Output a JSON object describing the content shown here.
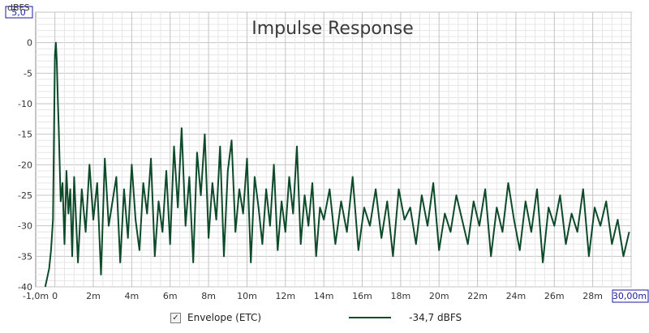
{
  "chart_data": {
    "type": "line",
    "title": "Impulse Response",
    "ylabel": "dBFS",
    "xlabel": "",
    "xlim": [
      -1.0,
      30.0
    ],
    "ylim": [
      -40,
      5
    ],
    "x_ticks": [
      {
        "value": -1.0,
        "label": "-1,0m"
      },
      {
        "value": 0,
        "label": "0"
      },
      {
        "value": 2,
        "label": "2m"
      },
      {
        "value": 4,
        "label": "4m"
      },
      {
        "value": 6,
        "label": "6m"
      },
      {
        "value": 8,
        "label": "8m"
      },
      {
        "value": 10,
        "label": "10m"
      },
      {
        "value": 12,
        "label": "12m"
      },
      {
        "value": 14,
        "label": "14m"
      },
      {
        "value": 16,
        "label": "16m"
      },
      {
        "value": 18,
        "label": "18m"
      },
      {
        "value": 20,
        "label": "20m"
      },
      {
        "value": 22,
        "label": "22m"
      },
      {
        "value": 24,
        "label": "24m"
      },
      {
        "value": 26,
        "label": "26m"
      },
      {
        "value": 28,
        "label": "28m"
      },
      {
        "value": 30,
        "label": "30,00m"
      }
    ],
    "y_ticks": [
      {
        "value": 5,
        "label": "5,0"
      },
      {
        "value": 0,
        "label": "0"
      },
      {
        "value": -5,
        "label": "-5"
      },
      {
        "value": -10,
        "label": "-10"
      },
      {
        "value": -15,
        "label": "-15"
      },
      {
        "value": -20,
        "label": "-20"
      },
      {
        "value": -25,
        "label": "-25"
      },
      {
        "value": -30,
        "label": "-30"
      },
      {
        "value": -35,
        "label": "-35"
      },
      {
        "value": -40,
        "label": "-40"
      }
    ],
    "grid": true,
    "legend": "bottom",
    "series": [
      {
        "name": "Envelope (ETC)",
        "legend_value": "-34,7 dBFS",
        "color": "#0d4a2a",
        "x": [
          -0.5,
          -0.3,
          -0.2,
          -0.1,
          0.0,
          0.05,
          0.1,
          0.15,
          0.2,
          0.25,
          0.3,
          0.4,
          0.5,
          0.6,
          0.7,
          0.8,
          0.9,
          1.0,
          1.2,
          1.4,
          1.6,
          1.8,
          2.0,
          2.2,
          2.4,
          2.6,
          2.8,
          3.0,
          3.2,
          3.4,
          3.6,
          3.8,
          4.0,
          4.2,
          4.4,
          4.6,
          4.8,
          5.0,
          5.2,
          5.4,
          5.6,
          5.8,
          6.0,
          6.2,
          6.4,
          6.6,
          6.8,
          7.0,
          7.2,
          7.4,
          7.6,
          7.8,
          8.0,
          8.2,
          8.4,
          8.6,
          8.8,
          9.0,
          9.2,
          9.4,
          9.6,
          9.8,
          10.0,
          10.2,
          10.4,
          10.6,
          10.8,
          11.0,
          11.2,
          11.4,
          11.6,
          11.8,
          12.0,
          12.2,
          12.4,
          12.6,
          12.8,
          13.0,
          13.2,
          13.4,
          13.6,
          13.8,
          14.0,
          14.3,
          14.6,
          14.9,
          15.2,
          15.5,
          15.8,
          16.1,
          16.4,
          16.7,
          17.0,
          17.3,
          17.6,
          17.9,
          18.2,
          18.5,
          18.8,
          19.1,
          19.4,
          19.7,
          20.0,
          20.3,
          20.6,
          20.9,
          21.2,
          21.5,
          21.8,
          22.1,
          22.4,
          22.7,
          23.0,
          23.3,
          23.6,
          23.9,
          24.2,
          24.5,
          24.8,
          25.1,
          25.4,
          25.7,
          26.0,
          26.3,
          26.6,
          26.9,
          27.2,
          27.5,
          27.8,
          28.1,
          28.4,
          28.7,
          29.0,
          29.3,
          29.6,
          29.9
        ],
        "y": [
          -40,
          -37,
          -34,
          -29,
          -2,
          0,
          -3,
          -9,
          -14,
          -20,
          -26,
          -23,
          -33,
          -21,
          -28,
          -24,
          -35,
          -22,
          -36,
          -24,
          -31,
          -20,
          -29,
          -23,
          -38,
          -19,
          -30,
          -26,
          -22,
          -36,
          -24,
          -32,
          -20,
          -29,
          -34,
          -23,
          -28,
          -19,
          -35,
          -26,
          -31,
          -21,
          -33,
          -17,
          -27,
          -14,
          -30,
          -22,
          -36,
          -18,
          -25,
          -15,
          -32,
          -23,
          -29,
          -17,
          -35,
          -21,
          -16,
          -31,
          -24,
          -28,
          -19,
          -36,
          -22,
          -27,
          -33,
          -24,
          -30,
          -20,
          -34,
          -26,
          -31,
          -22,
          -28,
          -17,
          -33,
          -25,
          -30,
          -23,
          -35,
          -27,
          -29,
          -24,
          -33,
          -26,
          -31,
          -22,
          -34,
          -27,
          -30,
          -24,
          -32,
          -26,
          -35,
          -24,
          -29,
          -27,
          -33,
          -25,
          -30,
          -23,
          -34,
          -28,
          -31,
          -25,
          -29,
          -33,
          -26,
          -30,
          -24,
          -35,
          -27,
          -31,
          -23,
          -29,
          -34,
          -26,
          -31,
          -24,
          -36,
          -27,
          -30,
          -25,
          -33,
          -28,
          -31,
          -24,
          -35,
          -27,
          -30,
          -26,
          -33,
          -29,
          -35,
          -31
        ]
      }
    ]
  }
}
